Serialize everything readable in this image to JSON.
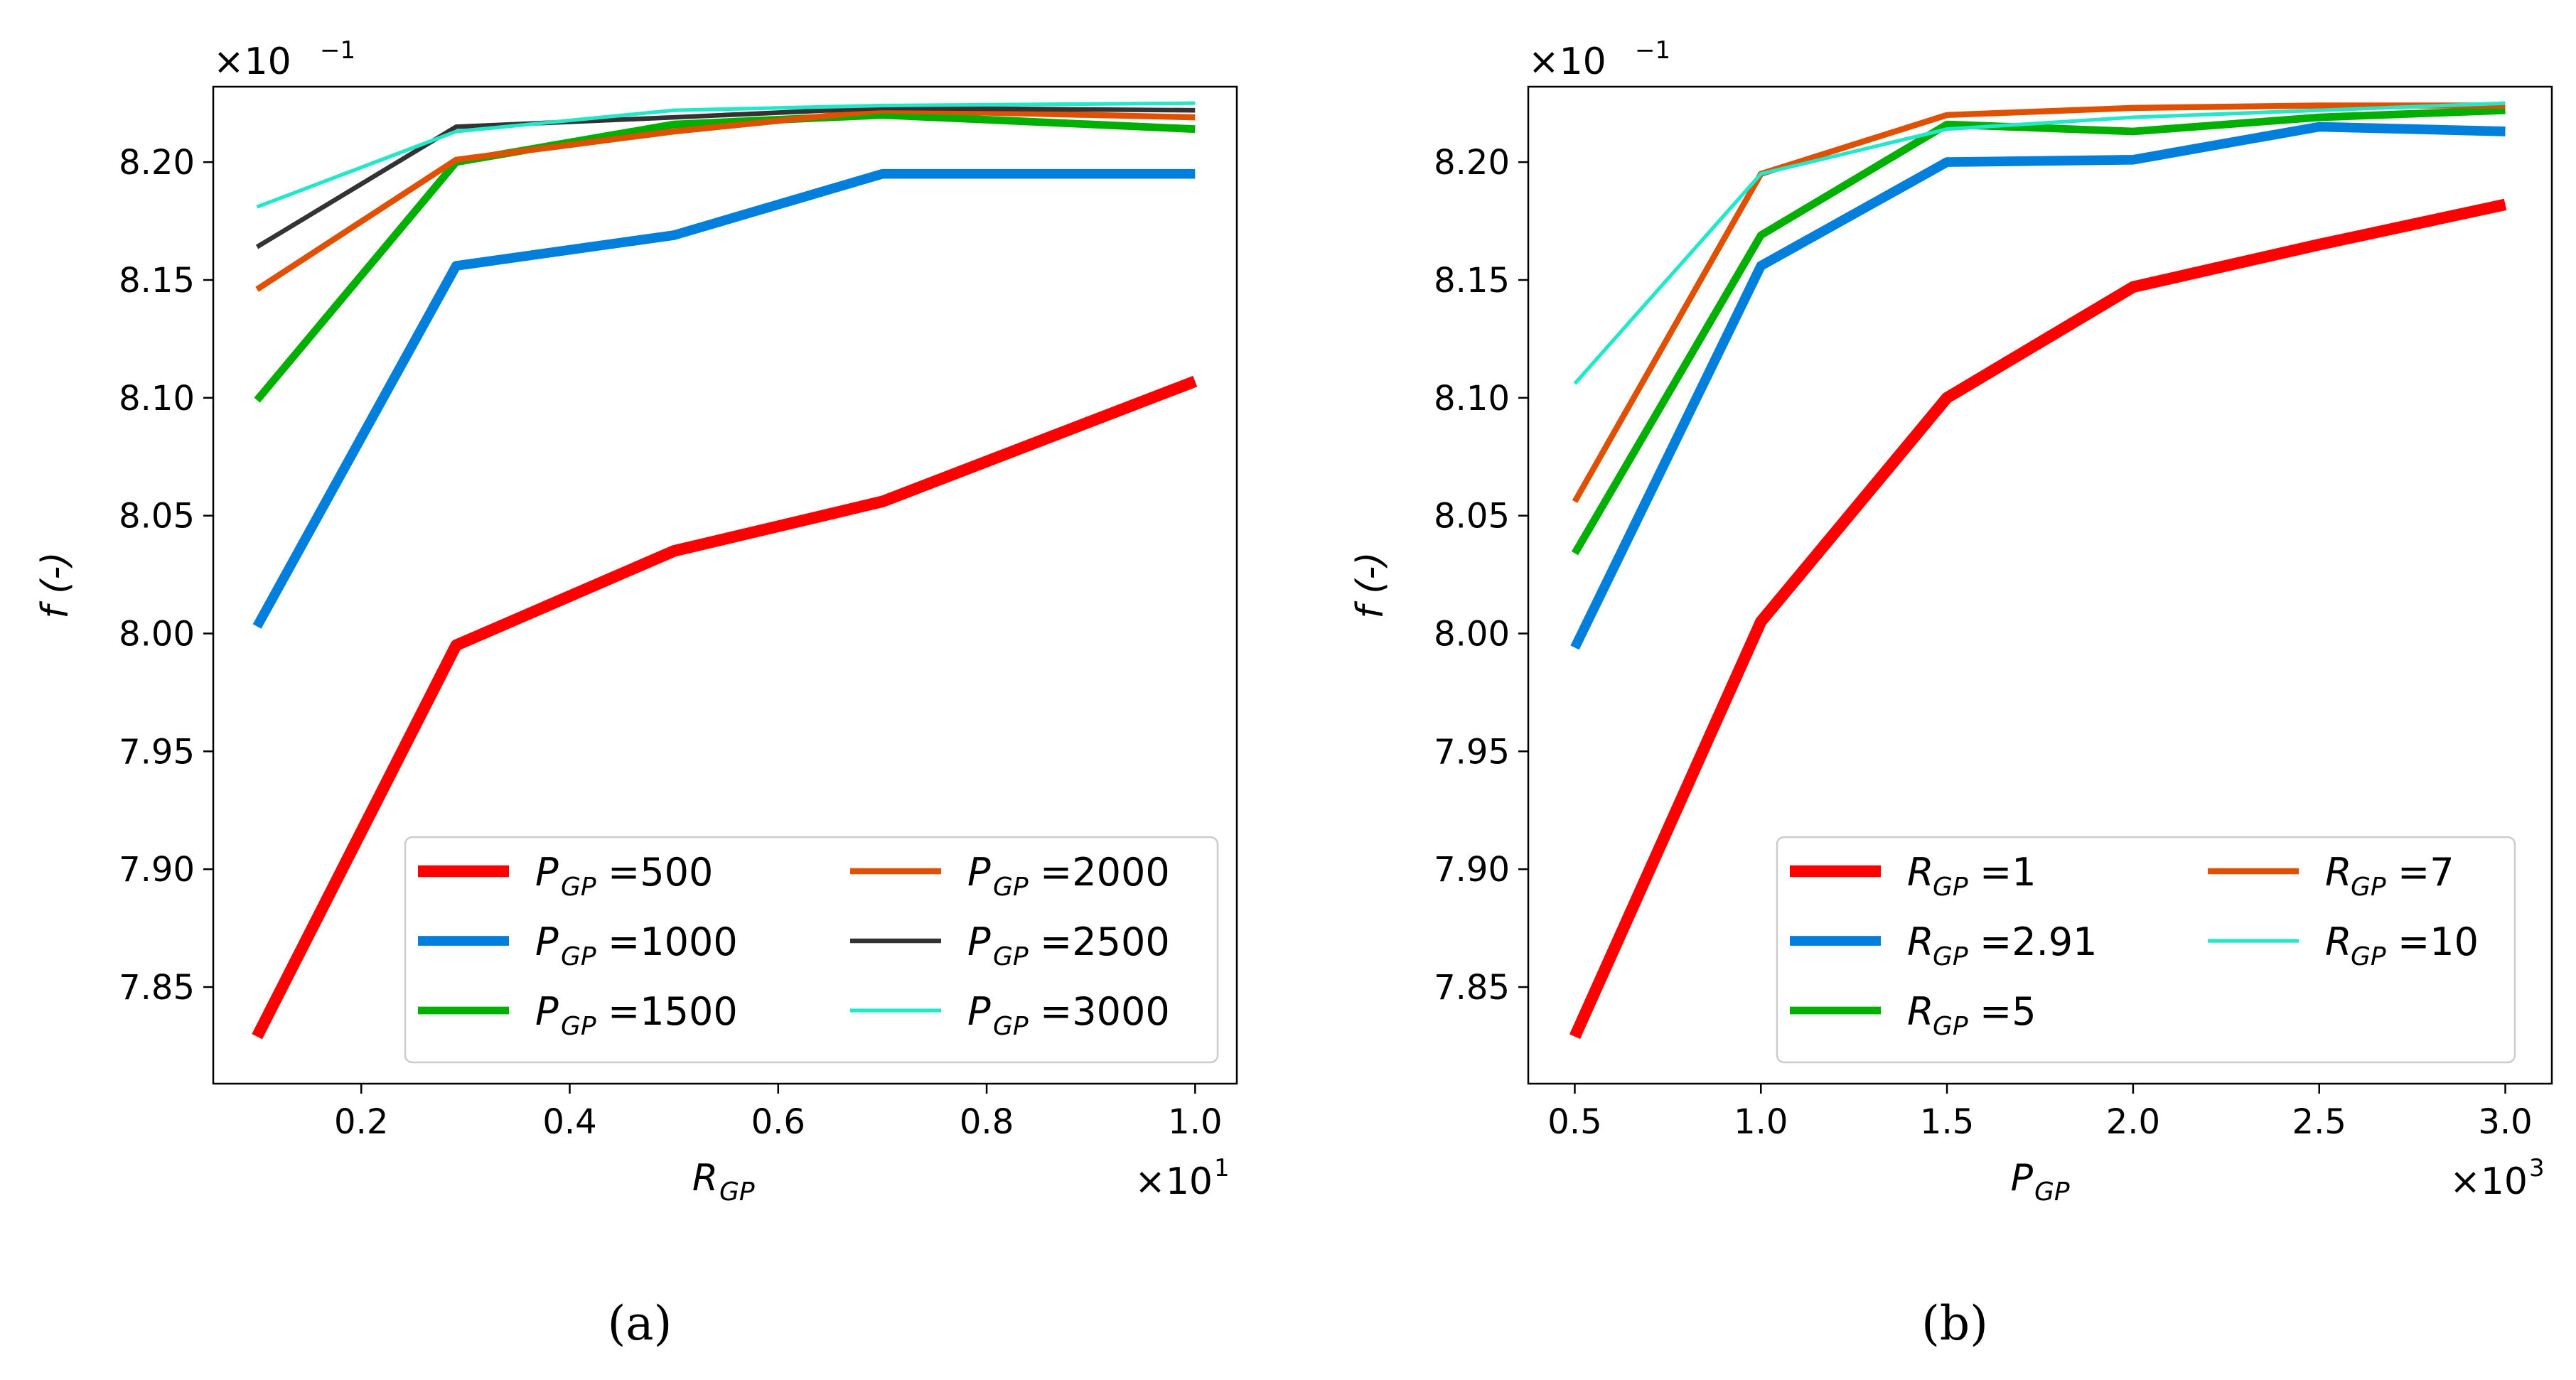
{
  "chart_data": [
    {
      "panel": "a",
      "type": "line",
      "caption": "(a)",
      "xlabel": "R",
      "xlabel_sub": "GP",
      "ylabel": "f (-)",
      "x_multiplier": "×10",
      "x_multiplier_exp": "1",
      "y_multiplier": "×10",
      "y_multiplier_exp": "−1",
      "xlim": [
        0.058,
        1.04
      ],
      "ylim": [
        7.809,
        8.232
      ],
      "xticks": [
        0.2,
        0.4,
        0.6,
        0.8,
        1.0
      ],
      "xtick_labels": [
        "0.2",
        "0.4",
        "0.6",
        "0.8",
        "1.0"
      ],
      "yticks": [
        7.85,
        7.9,
        7.95,
        8.0,
        8.05,
        8.1,
        8.15,
        8.2
      ],
      "ytick_labels": [
        "7.85",
        "7.90",
        "7.95",
        "8.00",
        "8.05",
        "8.10",
        "8.15",
        "8.20"
      ],
      "legend_placement": "lower right",
      "legend_columns": 2,
      "x": [
        0.1,
        0.291,
        0.5,
        0.7,
        1.0
      ],
      "series": [
        {
          "name": "P",
          "name_sub": "GP",
          "name_value": "=500",
          "color": "#ff0000",
          "width": 7,
          "values": [
            7.829,
            7.995,
            8.035,
            8.056,
            8.107
          ]
        },
        {
          "name": "P",
          "name_sub": "GP",
          "name_value": "=1000",
          "color": "#0080dc",
          "width": 5.8,
          "values": [
            8.003,
            8.156,
            8.169,
            8.195,
            8.195
          ]
        },
        {
          "name": "P",
          "name_sub": "GP",
          "name_value": "=1500",
          "color": "#00b000",
          "width": 4.6,
          "values": [
            8.099,
            8.2,
            8.216,
            8.22,
            8.214
          ]
        },
        {
          "name": "P",
          "name_sub": "GP",
          "name_value": "=2000",
          "color": "#e05000",
          "width": 3.6,
          "values": [
            8.146,
            8.201,
            8.213,
            8.222,
            8.219
          ]
        },
        {
          "name": "P",
          "name_sub": "GP",
          "name_value": "=2500",
          "color": "#333333",
          "width": 2.8,
          "values": [
            8.164,
            8.215,
            8.219,
            8.223,
            8.222
          ]
        },
        {
          "name": "P",
          "name_sub": "GP",
          "name_value": "=3000",
          "color": "#20e8c8",
          "width": 2.2,
          "values": [
            8.181,
            8.213,
            8.222,
            8.224,
            8.225
          ]
        }
      ]
    },
    {
      "panel": "b",
      "type": "line",
      "caption": "(b)",
      "xlabel": "P",
      "xlabel_sub": "GP",
      "ylabel": "f (-)",
      "x_multiplier": "×10",
      "x_multiplier_exp": "3",
      "y_multiplier": "×10",
      "y_multiplier_exp": "−1",
      "xlim": [
        0.375,
        3.125
      ],
      "ylim": [
        7.809,
        8.232
      ],
      "xticks": [
        0.5,
        1.0,
        1.5,
        2.0,
        2.5,
        3.0
      ],
      "xtick_labels": [
        "0.5",
        "1.0",
        "1.5",
        "2.0",
        "2.5",
        "3.0"
      ],
      "yticks": [
        7.85,
        7.9,
        7.95,
        8.0,
        8.05,
        8.1,
        8.15,
        8.2
      ],
      "ytick_labels": [
        "7.85",
        "7.90",
        "7.95",
        "8.00",
        "8.05",
        "8.10",
        "8.15",
        "8.20"
      ],
      "legend_placement": "lower right",
      "legend_columns": 2,
      "x": [
        0.5,
        1.0,
        1.5,
        2.0,
        2.5,
        3.0
      ],
      "series": [
        {
          "name": "R",
          "name_sub": "GP",
          "name_value": "=1",
          "color": "#ff0000",
          "width": 7,
          "values": [
            7.829,
            8.005,
            8.1,
            8.147,
            8.165,
            8.182
          ]
        },
        {
          "name": "R",
          "name_sub": "GP",
          "name_value": "=2.91",
          "color": "#0080dc",
          "width": 5.8,
          "values": [
            7.994,
            8.156,
            8.2,
            8.201,
            8.215,
            8.213
          ]
        },
        {
          "name": "R",
          "name_sub": "GP",
          "name_value": "=5",
          "color": "#00b000",
          "width": 4.6,
          "values": [
            8.034,
            8.169,
            8.216,
            8.213,
            8.219,
            8.222
          ]
        },
        {
          "name": "R",
          "name_sub": "GP",
          "name_value": "=7",
          "color": "#e05000",
          "width": 3.6,
          "values": [
            8.056,
            8.195,
            8.22,
            8.223,
            8.224,
            8.224
          ]
        },
        {
          "name": "R",
          "name_sub": "GP",
          "name_value": "=10",
          "color": "#20e8c8",
          "width": 2.2,
          "values": [
            8.106,
            8.195,
            8.214,
            8.219,
            8.222,
            8.225
          ]
        }
      ]
    }
  ]
}
